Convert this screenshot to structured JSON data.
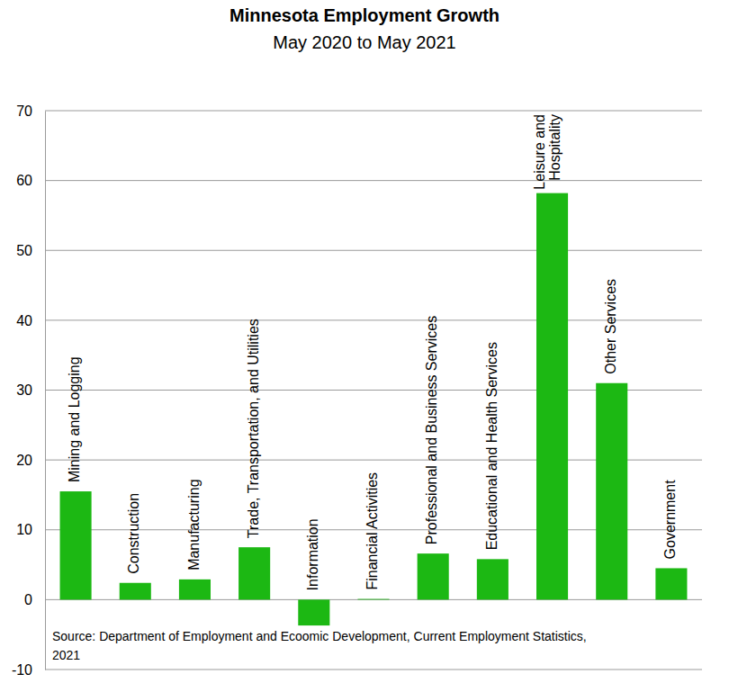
{
  "chart_data": {
    "type": "bar",
    "title": "Minnesota Employment Growth",
    "subtitle": "May 2020 to May 2021",
    "categories": [
      "Mining and Logging",
      "Construction",
      "Manufacturing",
      "Trade, Transportation, and Utilities",
      "Information",
      "Financial Activities",
      "Professional and Business Services",
      "Educational and Health Services",
      "Leisure and Hospitality",
      "Other Services",
      "Government"
    ],
    "values": [
      15.5,
      2.4,
      2.9,
      7.5,
      -3.7,
      0.1,
      6.6,
      5.8,
      58.2,
      31,
      4.5
    ],
    "color": "#1cb813",
    "ylim": [
      -10,
      70
    ],
    "yticks": [
      -10,
      0,
      10,
      20,
      30,
      40,
      50,
      60,
      70
    ],
    "grid": true,
    "source": "Source: Department of Employment and Ecoomic Development, Current Employment Statistics, 2021"
  }
}
